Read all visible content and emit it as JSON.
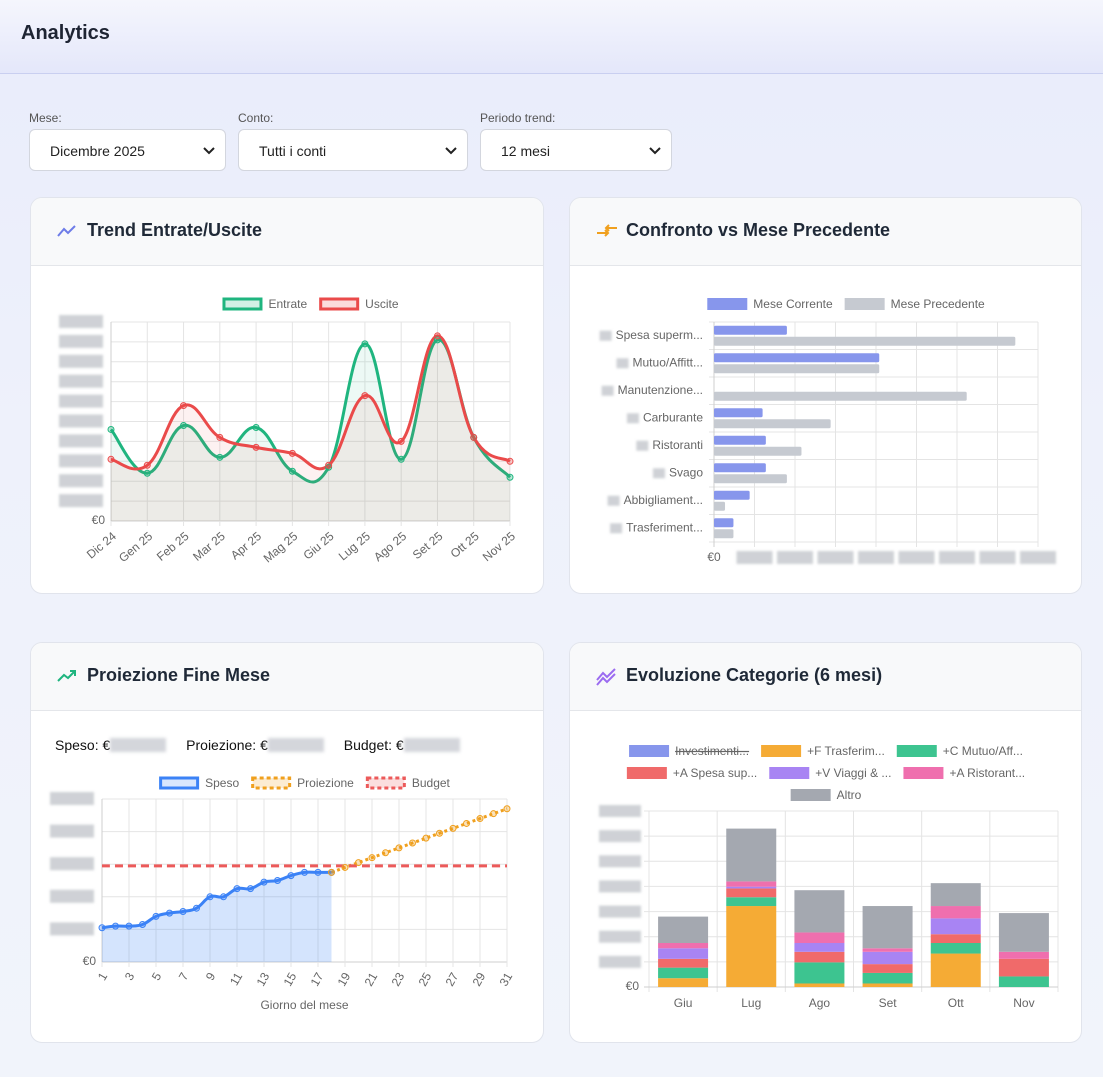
{
  "header": {
    "title": "Analytics"
  },
  "filters": [
    {
      "label": "Mese:",
      "value": "Dicembre 2025"
    },
    {
      "label": "Conto:",
      "value": "Tutti i conti"
    },
    {
      "label": "Periodo trend:",
      "value": "12 mesi"
    }
  ],
  "chart_data": [
    {
      "type": "line",
      "title": "Trend Entrate/Uscite",
      "categories": [
        "Dic 24",
        "Gen 25",
        "Feb 25",
        "Mar 25",
        "Apr 25",
        "Mag 25",
        "Giu 25",
        "Lug 25",
        "Ago 25",
        "Set 25",
        "Ott 25",
        "Nov 25"
      ],
      "series": [
        {
          "name": "Entrate",
          "color": "#1fb57f",
          "values": [
            46,
            24,
            48,
            32,
            47,
            25,
            27,
            89,
            31,
            91,
            42,
            22
          ]
        },
        {
          "name": "Uscite",
          "color": "#ea4a4a",
          "values": [
            31,
            28,
            58,
            42,
            37,
            34,
            28,
            63,
            40,
            93,
            42,
            30
          ]
        }
      ],
      "ylim": [
        0,
        100
      ],
      "yticks": [
        {
          "value": 0,
          "label": "€0"
        }
      ],
      "grid": true,
      "legend": "top"
    },
    {
      "type": "bar",
      "orientation": "horizontal",
      "title": "Confronto vs Mese Precedente",
      "categories": [
        "Spesa superm...",
        "Mutuo/Affitt...",
        "Manutenzione...",
        "Carburante",
        "Ristoranti",
        "Svago",
        "Abbigliament...",
        "Trasferiment..."
      ],
      "series": [
        {
          "name": "Mese Corrente",
          "color": "#8796ec",
          "values": [
            22.5,
            51,
            0,
            15,
            16,
            16,
            11,
            6
          ]
        },
        {
          "name": "Mese Precedente",
          "color": "#c6cad1",
          "values": [
            93,
            51,
            78,
            36,
            27,
            22.5,
            3.4,
            6
          ]
        }
      ],
      "xlim": [
        0,
        100
      ],
      "xticks": [
        {
          "value": 0,
          "label": "€0"
        }
      ],
      "grid": true,
      "legend": "top"
    },
    {
      "type": "line",
      "title": "Proiezione Fine Mese",
      "stats": [
        "Speso: €",
        "Proiezione: €",
        "Budget: €"
      ],
      "x": [
        1,
        2,
        3,
        4,
        5,
        6,
        7,
        8,
        9,
        10,
        11,
        12,
        13,
        14,
        15,
        16,
        17,
        18,
        19,
        20,
        21,
        22,
        23,
        24,
        25,
        26,
        27,
        28,
        29,
        30,
        31
      ],
      "xlabel": "Giorno del mese",
      "series": [
        {
          "name": "Speso",
          "color": "#3b82f6",
          "fill": true,
          "line_style": "solid",
          "values": [
            21,
            22,
            22,
            23,
            28,
            30,
            31,
            33,
            40,
            40,
            45,
            45,
            49,
            50,
            53,
            55,
            55,
            55,
            null,
            null,
            null,
            null,
            null,
            null,
            null,
            null,
            null,
            null,
            null,
            null,
            null
          ]
        },
        {
          "name": "Proiezione",
          "color": "#f0a01e",
          "line_style": "dashed",
          "values": [
            null,
            null,
            null,
            null,
            null,
            null,
            null,
            null,
            null,
            null,
            null,
            null,
            null,
            null,
            null,
            null,
            null,
            55,
            58,
            61,
            64,
            67,
            70,
            73,
            76,
            79,
            82,
            85,
            88,
            91,
            94
          ]
        },
        {
          "name": "Budget",
          "color": "#ec5a5a",
          "line_style": "dashed",
          "points": false,
          "values": [
            59,
            59,
            59,
            59,
            59,
            59,
            59,
            59,
            59,
            59,
            59,
            59,
            59,
            59,
            59,
            59,
            59,
            59,
            59,
            59,
            59,
            59,
            59,
            59,
            59,
            59,
            59,
            59,
            59,
            59,
            59
          ]
        }
      ],
      "xlim": [
        1,
        31
      ],
      "xticks": [
        1,
        3,
        5,
        7,
        9,
        11,
        13,
        15,
        17,
        19,
        21,
        23,
        25,
        27,
        29,
        31
      ],
      "ylim": [
        0,
        100
      ],
      "yticks": [
        {
          "value": 0,
          "label": "€0"
        }
      ],
      "grid": true,
      "legend": "top"
    },
    {
      "type": "bar",
      "stacked": true,
      "title": "Evoluzione Categorie (6 mesi)",
      "categories": [
        "Giu",
        "Lug",
        "Ago",
        "Set",
        "Ott",
        "Nov"
      ],
      "series": [
        {
          "name": "Investimenti...",
          "color": "#8796ec",
          "hidden": true,
          "values": [
            null,
            null,
            null,
            null,
            null,
            null
          ]
        },
        {
          "name": "+F Trasferim...",
          "color": "#f5ab35",
          "values": [
            5,
            46,
            2,
            2,
            19,
            0
          ]
        },
        {
          "name": "+C Mutuo/Aff...",
          "color": "#3dc490",
          "values": [
            6,
            5,
            12,
            6,
            6,
            6
          ]
        },
        {
          "name": "+A Spesa sup...",
          "color": "#f06a6a",
          "values": [
            5,
            5,
            6,
            5,
            5,
            10
          ]
        },
        {
          "name": "+V Viaggi & ...",
          "color": "#a884f3",
          "values": [
            6,
            1,
            5,
            7,
            9,
            0
          ]
        },
        {
          "name": "+A Ristorant...",
          "color": "#ef6fae",
          "values": [
            3,
            3,
            6,
            2,
            7,
            4
          ]
        },
        {
          "name": "Altro",
          "color": "#a4a8b0",
          "values": [
            15,
            30,
            24,
            24,
            13,
            22
          ]
        }
      ],
      "ylim": [
        0,
        100
      ],
      "yticks": [
        {
          "value": 0,
          "label": "€0"
        }
      ],
      "grid": true,
      "legend": "top"
    }
  ]
}
